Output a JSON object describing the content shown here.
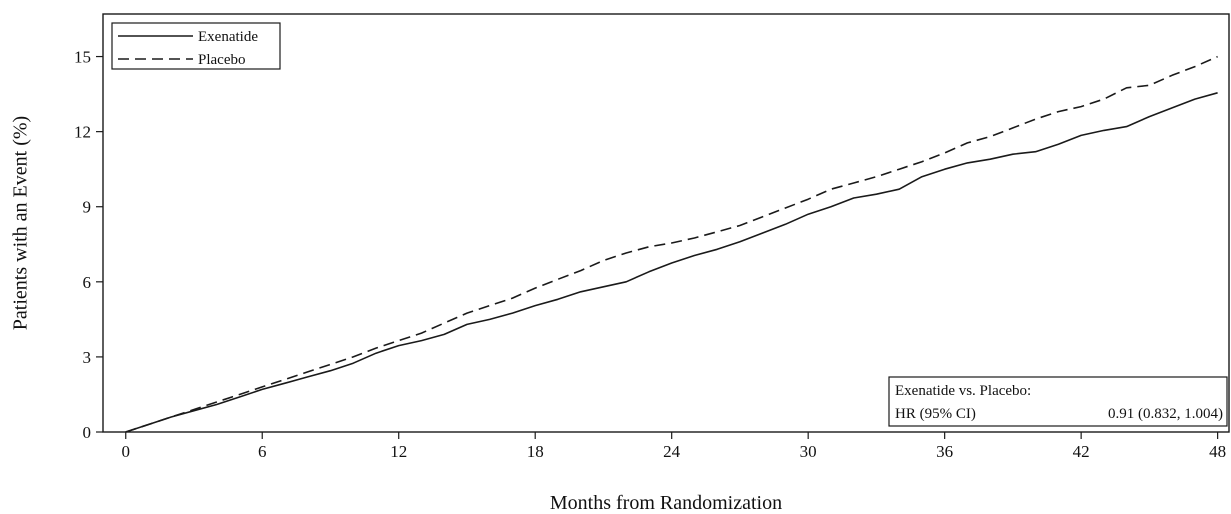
{
  "chart_data": {
    "type": "line",
    "title": "",
    "xlabel": "Months from Randomization",
    "ylabel": "Patients with an Event (%)",
    "xlim": [
      -1,
      48.5
    ],
    "ylim": [
      0,
      16.7
    ],
    "xticks": [
      0,
      6,
      12,
      18,
      24,
      30,
      36,
      42,
      48
    ],
    "yticks": [
      0,
      3,
      6,
      9,
      12,
      15
    ],
    "grid": false,
    "legend_position": "top-left",
    "series": [
      {
        "name": "Exenatide",
        "style": "solid",
        "color": "#1a1a1a",
        "x": [
          0,
          1,
          2,
          3,
          4,
          5,
          6,
          7,
          8,
          9,
          10,
          11,
          12,
          13,
          14,
          15,
          16,
          17,
          18,
          19,
          20,
          21,
          22,
          23,
          24,
          25,
          26,
          27,
          28,
          29,
          30,
          31,
          32,
          33,
          34,
          35,
          36,
          37,
          38,
          39,
          40,
          41,
          42,
          43,
          44,
          45,
          46,
          47,
          48
        ],
        "y": [
          0,
          0.3,
          0.6,
          0.85,
          1.1,
          1.4,
          1.7,
          1.95,
          2.2,
          2.45,
          2.75,
          3.15,
          3.45,
          3.65,
          3.9,
          4.3,
          4.5,
          4.75,
          5.05,
          5.3,
          5.6,
          5.8,
          6.0,
          6.4,
          6.75,
          7.05,
          7.3,
          7.6,
          7.95,
          8.3,
          8.7,
          9.0,
          9.35,
          9.5,
          9.7,
          10.2,
          10.5,
          10.75,
          10.9,
          11.1,
          11.2,
          11.5,
          11.85,
          12.05,
          12.2,
          12.6,
          12.95,
          13.3,
          13.55
        ]
      },
      {
        "name": "Placebo",
        "style": "dashed",
        "color": "#1a1a1a",
        "x": [
          0,
          1,
          2,
          3,
          4,
          5,
          6,
          7,
          8,
          9,
          10,
          11,
          12,
          13,
          14,
          15,
          16,
          17,
          18,
          19,
          20,
          21,
          22,
          23,
          24,
          25,
          26,
          27,
          28,
          29,
          30,
          31,
          32,
          33,
          34,
          35,
          36,
          37,
          38,
          39,
          40,
          41,
          42,
          43,
          44,
          45,
          46,
          47,
          48
        ],
        "y": [
          0,
          0.3,
          0.6,
          0.9,
          1.2,
          1.5,
          1.8,
          2.1,
          2.4,
          2.7,
          3.0,
          3.35,
          3.65,
          3.95,
          4.35,
          4.75,
          5.05,
          5.35,
          5.75,
          6.1,
          6.45,
          6.85,
          7.15,
          7.4,
          7.55,
          7.75,
          8.0,
          8.25,
          8.6,
          8.95,
          9.3,
          9.7,
          9.95,
          10.2,
          10.5,
          10.8,
          11.15,
          11.55,
          11.8,
          12.15,
          12.5,
          12.8,
          13.0,
          13.3,
          13.75,
          13.85,
          14.25,
          14.6,
          15.0
        ]
      }
    ],
    "annotation": {
      "heading": "Exenatide vs. Placebo:",
      "label": "HR (95% CI)",
      "value": "0.91 (0.832, 1.004)",
      "position": "bottom-right"
    }
  }
}
